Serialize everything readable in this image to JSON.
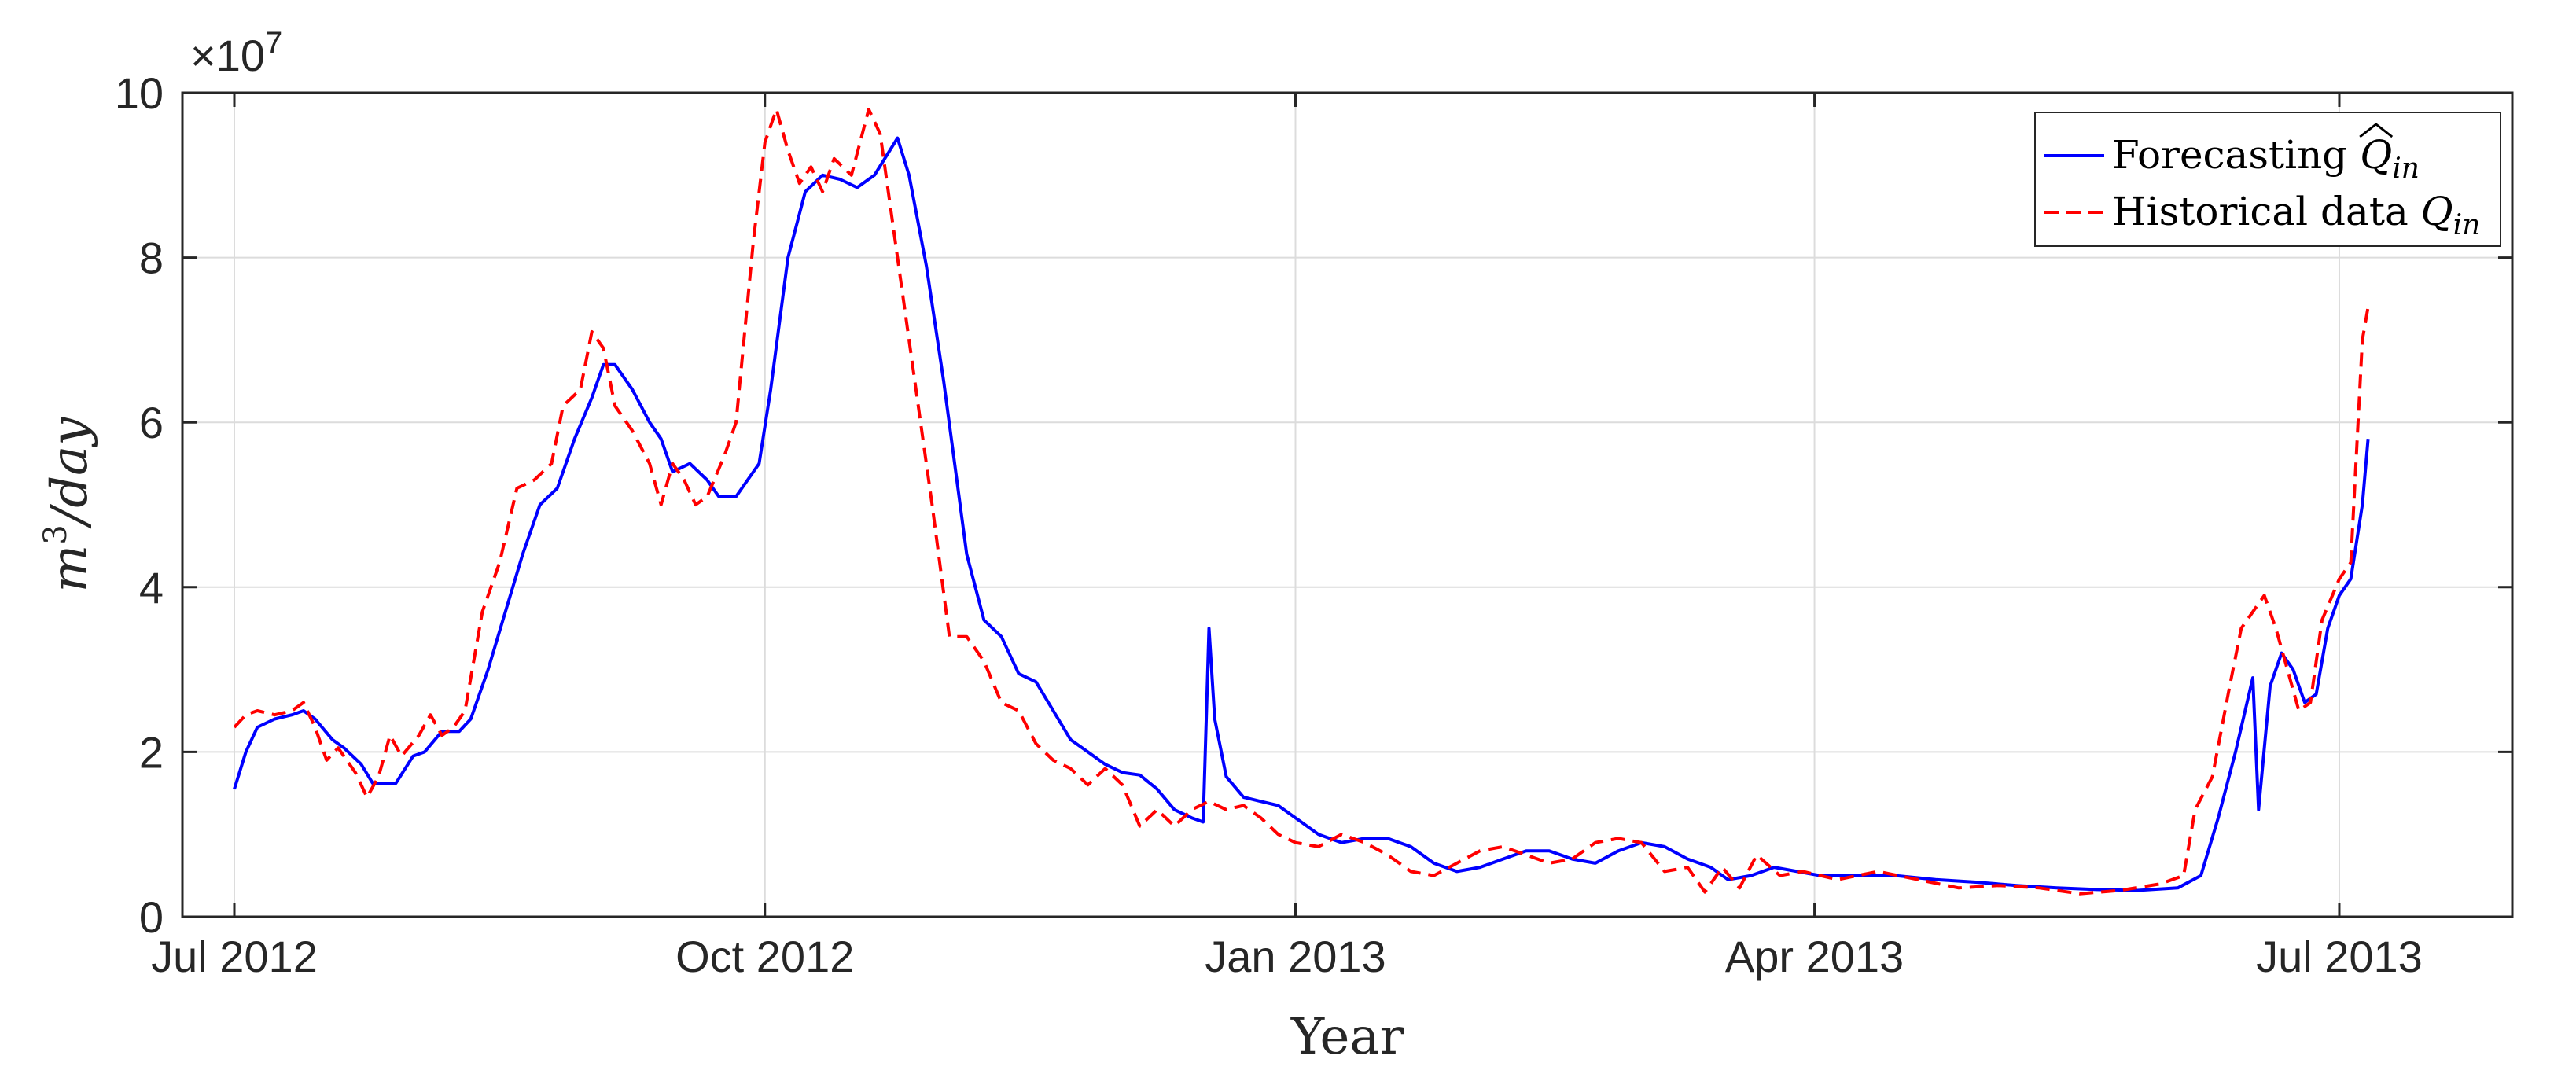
{
  "chart_data": {
    "type": "line",
    "xlabel": "Year",
    "ylabel": "m^3/day",
    "ylabel_parts": {
      "base": "m",
      "sup": "3",
      "rest": "/day"
    },
    "y_exponent": {
      "prefix": "×10",
      "power": "7"
    },
    "y_multiplier": 10000000,
    "xlim": [
      "2012-06-22",
      "2013-07-31"
    ],
    "ylim": [
      0,
      10
    ],
    "x_ticks": [
      {
        "date": "2012-07-01",
        "label": "Jul 2012"
      },
      {
        "date": "2012-10-01",
        "label": "Oct 2012"
      },
      {
        "date": "2013-01-01",
        "label": "Jan 2013"
      },
      {
        "date": "2013-04-01",
        "label": "Apr 2013"
      },
      {
        "date": "2013-07-01",
        "label": "Jul 2013"
      }
    ],
    "y_ticks": [
      0,
      2,
      4,
      6,
      8,
      10
    ],
    "grid": true,
    "legend_position": "top-right",
    "series": [
      {
        "name": "Forecasting Q̂in",
        "legend_parts": {
          "text": "Forecasting ",
          "symbol": "Q",
          "sub": "in",
          "hat": true
        },
        "color": "#0000ff",
        "style": "solid",
        "points": [
          [
            "2012-07-01",
            1.55
          ],
          [
            "2012-07-03",
            2.0
          ],
          [
            "2012-07-05",
            2.3
          ],
          [
            "2012-07-08",
            2.4
          ],
          [
            "2012-07-11",
            2.45
          ],
          [
            "2012-07-13",
            2.5
          ],
          [
            "2012-07-15",
            2.4
          ],
          [
            "2012-07-18",
            2.15
          ],
          [
            "2012-07-20",
            2.05
          ],
          [
            "2012-07-23",
            1.85
          ],
          [
            "2012-07-25",
            1.62
          ],
          [
            "2012-07-29",
            1.62
          ],
          [
            "2012-08-01",
            1.95
          ],
          [
            "2012-08-03",
            2.0
          ],
          [
            "2012-08-06",
            2.25
          ],
          [
            "2012-08-09",
            2.25
          ],
          [
            "2012-08-11",
            2.4
          ],
          [
            "2012-08-14",
            3.0
          ],
          [
            "2012-08-17",
            3.7
          ],
          [
            "2012-08-20",
            4.4
          ],
          [
            "2012-08-23",
            5.0
          ],
          [
            "2012-08-26",
            5.2
          ],
          [
            "2012-08-29",
            5.8
          ],
          [
            "2012-09-01",
            6.3
          ],
          [
            "2012-09-03",
            6.7
          ],
          [
            "2012-09-05",
            6.7
          ],
          [
            "2012-09-08",
            6.4
          ],
          [
            "2012-09-11",
            6.0
          ],
          [
            "2012-09-13",
            5.8
          ],
          [
            "2012-09-15",
            5.4
          ],
          [
            "2012-09-18",
            5.5
          ],
          [
            "2012-09-21",
            5.3
          ],
          [
            "2012-09-23",
            5.1
          ],
          [
            "2012-09-26",
            5.1
          ],
          [
            "2012-09-28",
            5.3
          ],
          [
            "2012-09-30",
            5.5
          ],
          [
            "2012-10-02",
            6.4
          ],
          [
            "2012-10-05",
            8.0
          ],
          [
            "2012-10-08",
            8.8
          ],
          [
            "2012-10-11",
            9.0
          ],
          [
            "2012-10-14",
            8.95
          ],
          [
            "2012-10-17",
            8.85
          ],
          [
            "2012-10-20",
            9.0
          ],
          [
            "2012-10-24",
            9.45
          ],
          [
            "2012-10-26",
            9.0
          ],
          [
            "2012-10-29",
            7.9
          ],
          [
            "2012-11-01",
            6.5
          ],
          [
            "2012-11-05",
            4.4
          ],
          [
            "2012-11-08",
            3.6
          ],
          [
            "2012-11-11",
            3.4
          ],
          [
            "2012-11-14",
            2.95
          ],
          [
            "2012-11-17",
            2.85
          ],
          [
            "2012-11-20",
            2.5
          ],
          [
            "2012-11-23",
            2.15
          ],
          [
            "2012-11-26",
            2.0
          ],
          [
            "2012-11-29",
            1.85
          ],
          [
            "2012-12-02",
            1.75
          ],
          [
            "2012-12-05",
            1.72
          ],
          [
            "2012-12-08",
            1.55
          ],
          [
            "2012-12-11",
            1.3
          ],
          [
            "2012-12-14",
            1.2
          ],
          [
            "2012-12-16",
            1.15
          ],
          [
            "2012-12-17",
            3.5
          ],
          [
            "2012-12-18",
            2.4
          ],
          [
            "2012-12-20",
            1.7
          ],
          [
            "2012-12-23",
            1.45
          ],
          [
            "2012-12-26",
            1.4
          ],
          [
            "2012-12-29",
            1.35
          ],
          [
            "2013-01-01",
            1.2
          ],
          [
            "2013-01-05",
            1.0
          ],
          [
            "2013-01-09",
            0.9
          ],
          [
            "2013-01-13",
            0.95
          ],
          [
            "2013-01-17",
            0.95
          ],
          [
            "2013-01-21",
            0.85
          ],
          [
            "2013-01-25",
            0.65
          ],
          [
            "2013-01-29",
            0.55
          ],
          [
            "2013-02-02",
            0.6
          ],
          [
            "2013-02-06",
            0.7
          ],
          [
            "2013-02-10",
            0.8
          ],
          [
            "2013-02-14",
            0.8
          ],
          [
            "2013-02-18",
            0.7
          ],
          [
            "2013-02-22",
            0.65
          ],
          [
            "2013-02-26",
            0.8
          ],
          [
            "2013-03-02",
            0.9
          ],
          [
            "2013-03-06",
            0.85
          ],
          [
            "2013-03-10",
            0.7
          ],
          [
            "2013-03-14",
            0.6
          ],
          [
            "2013-03-17",
            0.45
          ],
          [
            "2013-03-21",
            0.5
          ],
          [
            "2013-03-25",
            0.6
          ],
          [
            "2013-03-29",
            0.55
          ],
          [
            "2013-04-02",
            0.5
          ],
          [
            "2013-04-08",
            0.5
          ],
          [
            "2013-04-15",
            0.5
          ],
          [
            "2013-04-22",
            0.45
          ],
          [
            "2013-04-29",
            0.42
          ],
          [
            "2013-05-06",
            0.38
          ],
          [
            "2013-05-13",
            0.35
          ],
          [
            "2013-05-20",
            0.33
          ],
          [
            "2013-05-27",
            0.32
          ],
          [
            "2013-06-03",
            0.35
          ],
          [
            "2013-06-07",
            0.5
          ],
          [
            "2013-06-10",
            1.2
          ],
          [
            "2013-06-13",
            2.0
          ],
          [
            "2013-06-16",
            2.9
          ],
          [
            "2013-06-17",
            1.3
          ],
          [
            "2013-06-19",
            2.8
          ],
          [
            "2013-06-21",
            3.2
          ],
          [
            "2013-06-23",
            3.0
          ],
          [
            "2013-06-25",
            2.6
          ],
          [
            "2013-06-27",
            2.7
          ],
          [
            "2013-06-29",
            3.5
          ],
          [
            "2013-07-01",
            3.9
          ],
          [
            "2013-07-03",
            4.1
          ],
          [
            "2013-07-05",
            5.0
          ],
          [
            "2013-07-06",
            5.8
          ]
        ]
      },
      {
        "name": "Historical data Qin",
        "legend_parts": {
          "text": "Historical data ",
          "symbol": "Q",
          "sub": "in",
          "hat": false
        },
        "color": "#ff0000",
        "style": "dashed",
        "points": [
          [
            "2012-07-01",
            2.3
          ],
          [
            "2012-07-03",
            2.45
          ],
          [
            "2012-07-05",
            2.5
          ],
          [
            "2012-07-08",
            2.45
          ],
          [
            "2012-07-11",
            2.5
          ],
          [
            "2012-07-13",
            2.6
          ],
          [
            "2012-07-15",
            2.3
          ],
          [
            "2012-07-17",
            1.9
          ],
          [
            "2012-07-19",
            2.05
          ],
          [
            "2012-07-22",
            1.75
          ],
          [
            "2012-07-24",
            1.45
          ],
          [
            "2012-07-26",
            1.7
          ],
          [
            "2012-07-28",
            2.2
          ],
          [
            "2012-07-30",
            1.95
          ],
          [
            "2012-08-02",
            2.2
          ],
          [
            "2012-08-04",
            2.45
          ],
          [
            "2012-08-06",
            2.2
          ],
          [
            "2012-08-08",
            2.3
          ],
          [
            "2012-08-10",
            2.5
          ],
          [
            "2012-08-13",
            3.7
          ],
          [
            "2012-08-16",
            4.3
          ],
          [
            "2012-08-19",
            5.2
          ],
          [
            "2012-08-22",
            5.3
          ],
          [
            "2012-08-25",
            5.5
          ],
          [
            "2012-08-27",
            6.2
          ],
          [
            "2012-08-30",
            6.4
          ],
          [
            "2012-09-01",
            7.1
          ],
          [
            "2012-09-03",
            6.9
          ],
          [
            "2012-09-05",
            6.2
          ],
          [
            "2012-09-08",
            5.9
          ],
          [
            "2012-09-11",
            5.5
          ],
          [
            "2012-09-13",
            5.0
          ],
          [
            "2012-09-15",
            5.5
          ],
          [
            "2012-09-17",
            5.3
          ],
          [
            "2012-09-19",
            5.0
          ],
          [
            "2012-09-21",
            5.1
          ],
          [
            "2012-09-24",
            5.6
          ],
          [
            "2012-09-26",
            6.0
          ],
          [
            "2012-09-29",
            8.2
          ],
          [
            "2012-10-01",
            9.4
          ],
          [
            "2012-10-03",
            9.8
          ],
          [
            "2012-10-05",
            9.3
          ],
          [
            "2012-10-07",
            8.9
          ],
          [
            "2012-10-09",
            9.1
          ],
          [
            "2012-10-11",
            8.8
          ],
          [
            "2012-10-13",
            9.2
          ],
          [
            "2012-10-16",
            9.0
          ],
          [
            "2012-10-19",
            9.8
          ],
          [
            "2012-10-21",
            9.5
          ],
          [
            "2012-10-24",
            8.0
          ],
          [
            "2012-10-27",
            6.5
          ],
          [
            "2012-10-30",
            5.0
          ],
          [
            "2012-11-02",
            3.4
          ],
          [
            "2012-11-05",
            3.4
          ],
          [
            "2012-11-08",
            3.1
          ],
          [
            "2012-11-11",
            2.6
          ],
          [
            "2012-11-14",
            2.5
          ],
          [
            "2012-11-17",
            2.1
          ],
          [
            "2012-11-20",
            1.9
          ],
          [
            "2012-11-23",
            1.8
          ],
          [
            "2012-11-26",
            1.6
          ],
          [
            "2012-11-29",
            1.8
          ],
          [
            "2012-12-02",
            1.6
          ],
          [
            "2012-12-05",
            1.1
          ],
          [
            "2012-12-08",
            1.3
          ],
          [
            "2012-12-11",
            1.1
          ],
          [
            "2012-12-14",
            1.3
          ],
          [
            "2012-12-17",
            1.4
          ],
          [
            "2012-12-20",
            1.3
          ],
          [
            "2012-12-23",
            1.35
          ],
          [
            "2012-12-26",
            1.2
          ],
          [
            "2012-12-29",
            1.0
          ],
          [
            "2013-01-01",
            0.9
          ],
          [
            "2013-01-05",
            0.85
          ],
          [
            "2013-01-09",
            1.0
          ],
          [
            "2013-01-13",
            0.9
          ],
          [
            "2013-01-17",
            0.75
          ],
          [
            "2013-01-21",
            0.55
          ],
          [
            "2013-01-25",
            0.5
          ],
          [
            "2013-01-29",
            0.65
          ],
          [
            "2013-02-02",
            0.8
          ],
          [
            "2013-02-06",
            0.85
          ],
          [
            "2013-02-10",
            0.75
          ],
          [
            "2013-02-14",
            0.65
          ],
          [
            "2013-02-18",
            0.7
          ],
          [
            "2013-02-22",
            0.9
          ],
          [
            "2013-02-26",
            0.95
          ],
          [
            "2013-03-02",
            0.9
          ],
          [
            "2013-03-06",
            0.55
          ],
          [
            "2013-03-10",
            0.6
          ],
          [
            "2013-03-13",
            0.3
          ],
          [
            "2013-03-16",
            0.6
          ],
          [
            "2013-03-19",
            0.35
          ],
          [
            "2013-03-22",
            0.75
          ],
          [
            "2013-03-26",
            0.5
          ],
          [
            "2013-03-30",
            0.55
          ],
          [
            "2013-04-05",
            0.45
          ],
          [
            "2013-04-12",
            0.55
          ],
          [
            "2013-04-19",
            0.45
          ],
          [
            "2013-04-26",
            0.35
          ],
          [
            "2013-05-03",
            0.38
          ],
          [
            "2013-05-10",
            0.35
          ],
          [
            "2013-05-17",
            0.28
          ],
          [
            "2013-05-24",
            0.32
          ],
          [
            "2013-05-31",
            0.4
          ],
          [
            "2013-06-04",
            0.5
          ],
          [
            "2013-06-06",
            1.3
          ],
          [
            "2013-06-09",
            1.7
          ],
          [
            "2013-06-12",
            2.8
          ],
          [
            "2013-06-14",
            3.5
          ],
          [
            "2013-06-16",
            3.7
          ],
          [
            "2013-06-18",
            3.9
          ],
          [
            "2013-06-20",
            3.5
          ],
          [
            "2013-06-22",
            3.0
          ],
          [
            "2013-06-24",
            2.5
          ],
          [
            "2013-06-26",
            2.6
          ],
          [
            "2013-06-28",
            3.6
          ],
          [
            "2013-07-01",
            4.1
          ],
          [
            "2013-07-03",
            4.3
          ],
          [
            "2013-07-05",
            7.0
          ],
          [
            "2013-07-06",
            7.4
          ]
        ]
      }
    ]
  }
}
